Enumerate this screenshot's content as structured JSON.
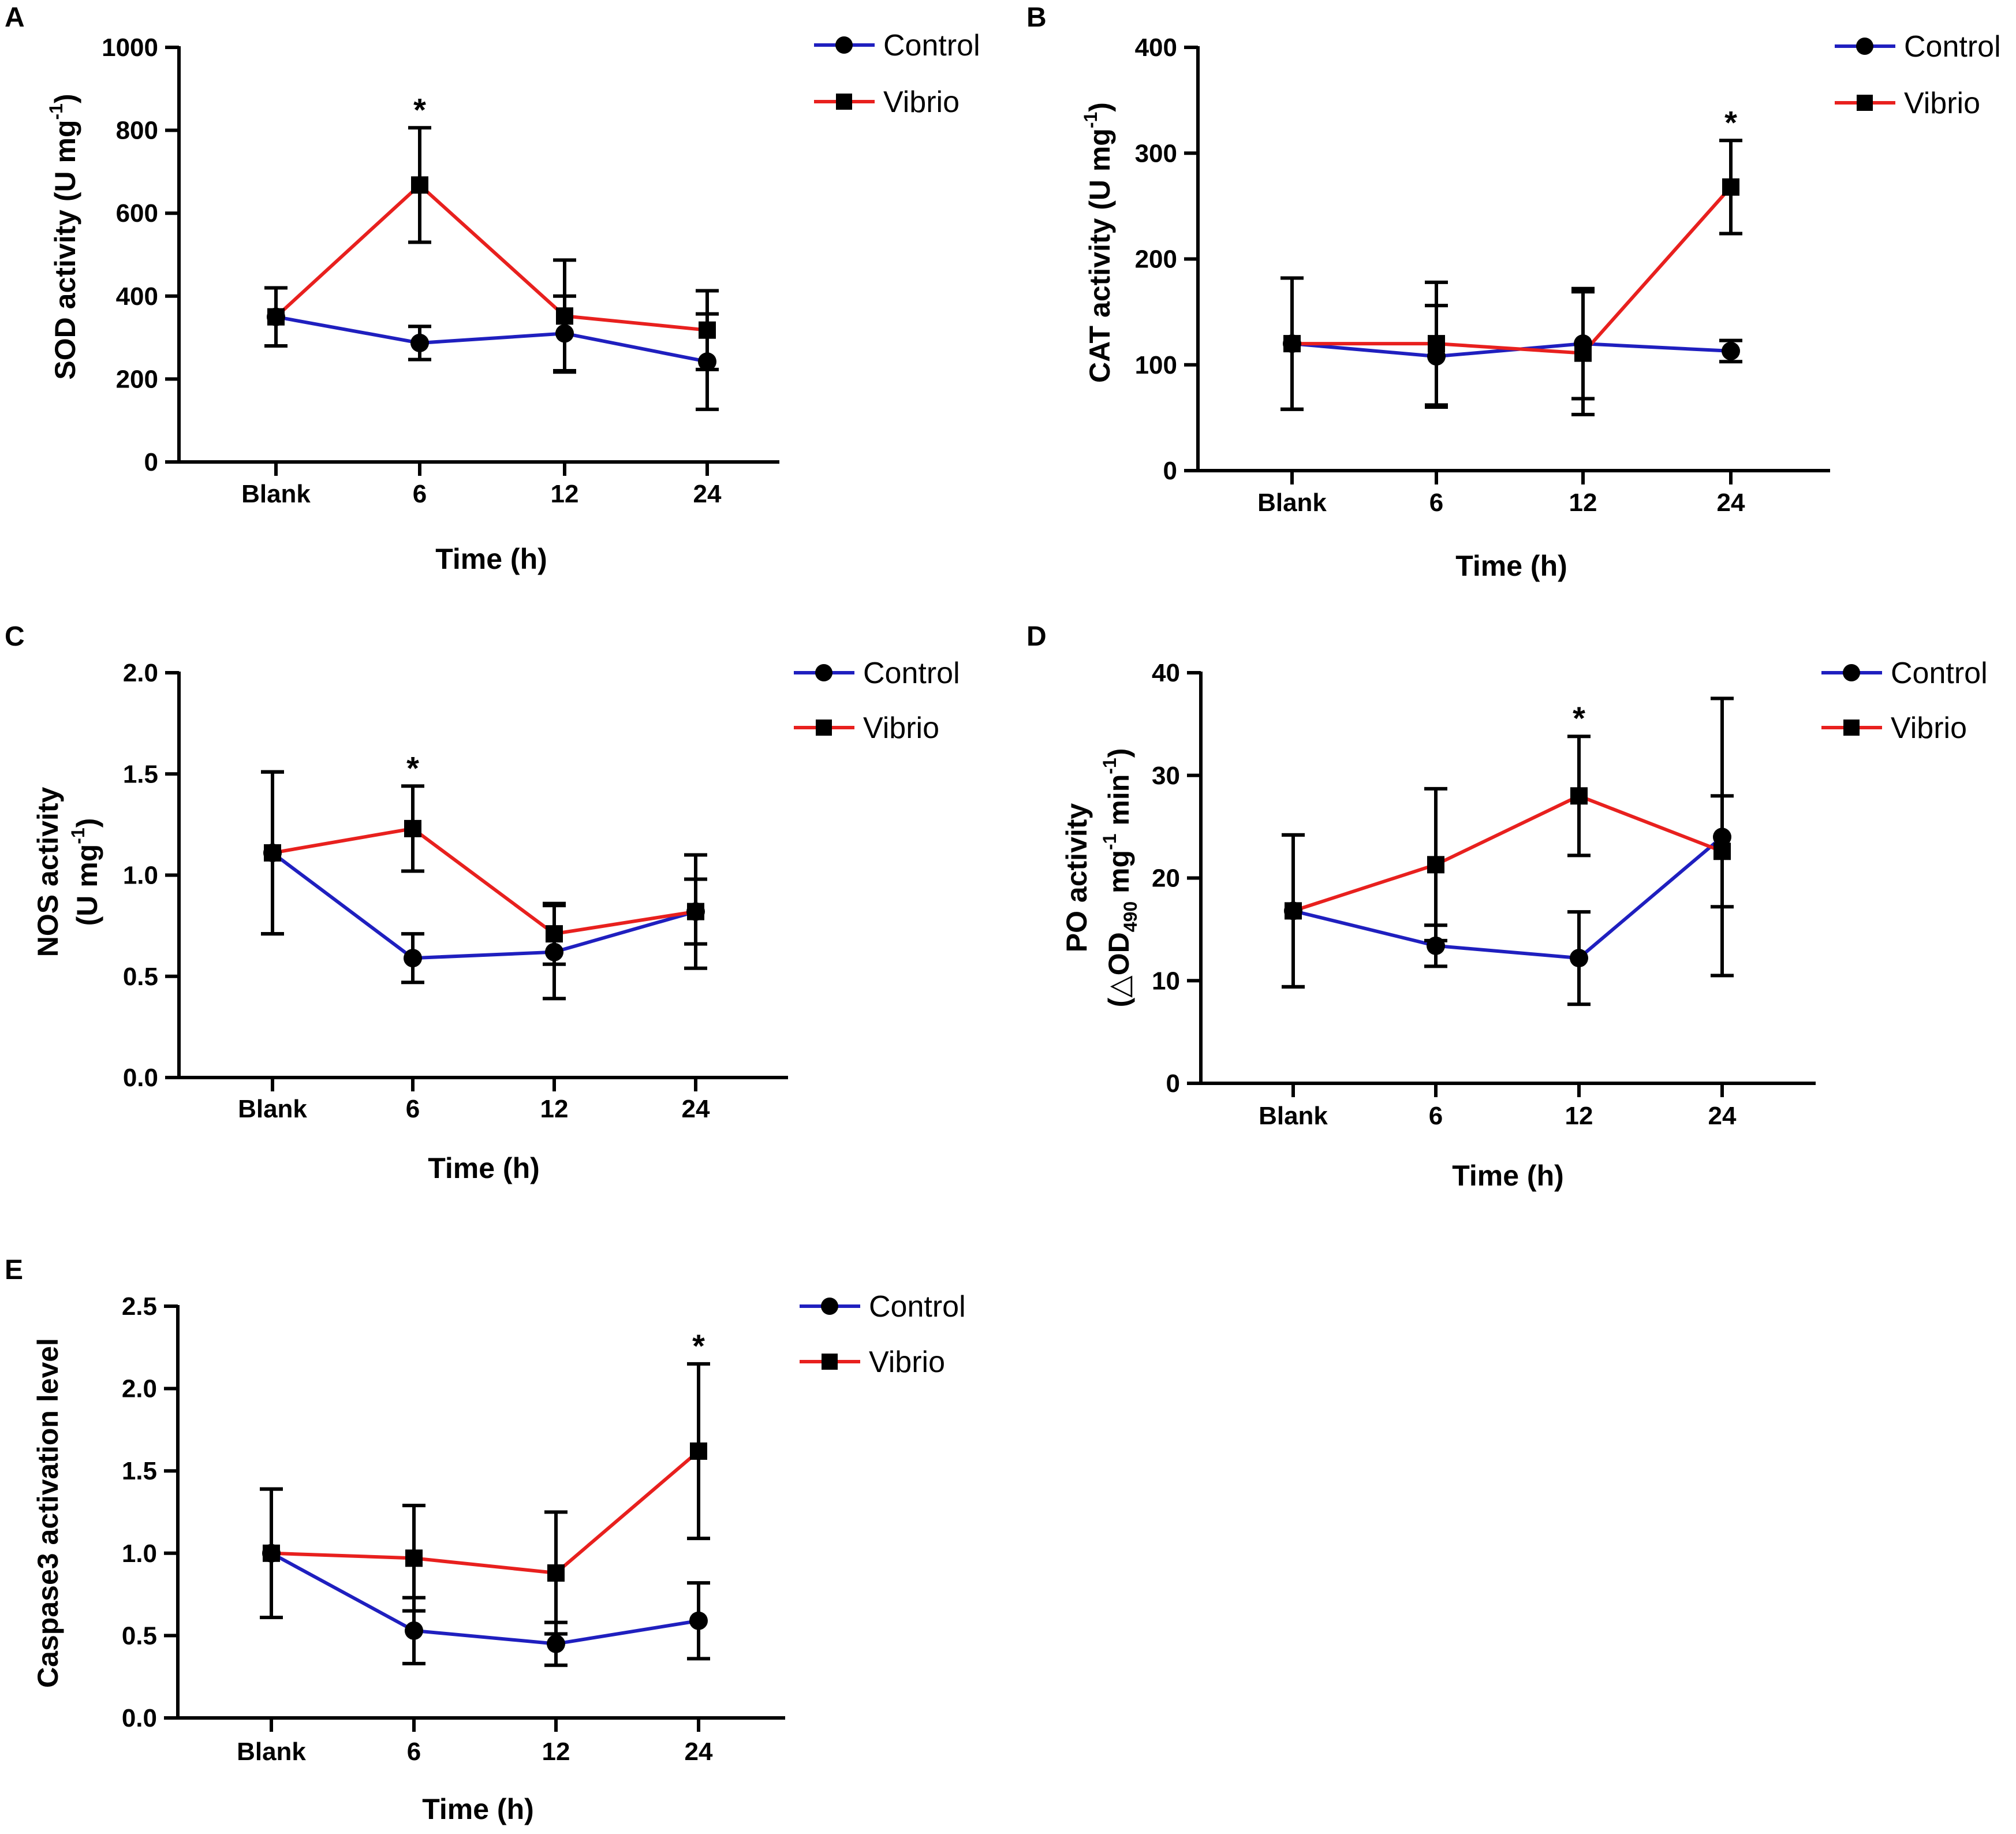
{
  "chart_data": [
    {
      "panel": "A",
      "type": "line",
      "title": "",
      "xlabel": "Time (h)",
      "ylabel": "SOD activity (U mg",
      "ylabel_sup": "-1",
      "ylabel_tail": ")",
      "categories": [
        "Blank",
        "6",
        "12",
        "24"
      ],
      "ylim": [
        0,
        1000
      ],
      "yticks": [
        "0",
        "200",
        "400",
        "600",
        "800",
        "1000"
      ],
      "tick_values": [
        0,
        200,
        400,
        600,
        800,
        1000
      ],
      "series": [
        {
          "name": "Control",
          "color": "#1f1fbf",
          "marker": "circle",
          "values": [
            350,
            287,
            310,
            242
          ],
          "err": [
            70,
            40,
            90,
            115
          ]
        },
        {
          "name": "Vibrio",
          "color": "#e8201e",
          "marker": "square",
          "values": [
            350,
            668,
            352,
            318
          ],
          "err": [
            70,
            138,
            135,
            95
          ]
        }
      ],
      "annotations": [
        {
          "category": "6",
          "text": "*"
        }
      ]
    },
    {
      "panel": "B",
      "type": "line",
      "title": "",
      "xlabel": "Time (h)",
      "ylabel": "CAT activity (U mg",
      "ylabel_sup": "-1",
      "ylabel_tail": ")",
      "categories": [
        "Blank",
        "6",
        "12",
        "24"
      ],
      "ylim": [
        0,
        400
      ],
      "yticks": [
        "0",
        "100",
        "200",
        "300",
        "400"
      ],
      "tick_values": [
        0,
        100,
        200,
        300,
        400
      ],
      "series": [
        {
          "name": "Control",
          "color": "#1f1fbf",
          "marker": "circle",
          "values": [
            120,
            108,
            120,
            113
          ],
          "err": [
            62,
            48,
            52,
            10
          ]
        },
        {
          "name": "Vibrio",
          "color": "#e8201e",
          "marker": "square",
          "values": [
            120,
            120,
            111,
            268
          ],
          "err": [
            62,
            58,
            58,
            44
          ]
        }
      ],
      "annotations": [
        {
          "category": "24",
          "text": "*"
        }
      ]
    },
    {
      "panel": "C",
      "type": "line",
      "title": "",
      "xlabel": "Time (h)",
      "ylabel": "NOS activity",
      "ylabel2": "(U mg",
      "ylabel2_sup": "-1",
      "ylabel2_tail": ")",
      "categories": [
        "Blank",
        "6",
        "12",
        "24"
      ],
      "ylim": [
        0,
        2.0
      ],
      "yticks": [
        "0.0",
        "0.5",
        "1.0",
        "1.5",
        "2.0"
      ],
      "tick_values": [
        0,
        0.5,
        1.0,
        1.5,
        2.0
      ],
      "series": [
        {
          "name": "Control",
          "color": "#1f1fbf",
          "marker": "circle",
          "values": [
            1.11,
            0.59,
            0.62,
            0.82
          ],
          "err": [
            0.4,
            0.12,
            0.23,
            0.16
          ]
        },
        {
          "name": "Vibrio",
          "color": "#e8201e",
          "marker": "square",
          "values": [
            1.11,
            1.23,
            0.71,
            0.82
          ],
          "err": [
            0.4,
            0.21,
            0.15,
            0.28
          ]
        }
      ],
      "annotations": [
        {
          "category": "6",
          "text": "*"
        }
      ]
    },
    {
      "panel": "D",
      "type": "line",
      "title": "",
      "xlabel": "Time (h)",
      "ylabel": "PO activity",
      "ylabel2": "(△OD",
      "ylabel2_sub": "490",
      "ylabel2_mid": " mg",
      "ylabel2_sup": "-1",
      "ylabel2_mid2": " min",
      "ylabel2_sup2": "-1",
      "ylabel2_tail": ")",
      "categories": [
        "Blank",
        "6",
        "12",
        "24"
      ],
      "ylim": [
        0,
        40
      ],
      "yticks": [
        "0",
        "10",
        "20",
        "30",
        "40"
      ],
      "tick_values": [
        0,
        10,
        20,
        30,
        40
      ],
      "series": [
        {
          "name": "Control",
          "color": "#1f1fbf",
          "marker": "circle",
          "values": [
            16.8,
            13.4,
            12.2,
            24.0
          ],
          "err": [
            7.4,
            2.0,
            4.5,
            13.5
          ]
        },
        {
          "name": "Vibrio",
          "color": "#e8201e",
          "marker": "square",
          "values": [
            16.8,
            21.3,
            28.0,
            22.6
          ],
          "err": [
            7.4,
            7.4,
            5.8,
            5.4
          ]
        }
      ],
      "annotations": [
        {
          "category": "12",
          "text": "*"
        }
      ]
    },
    {
      "panel": "E",
      "type": "line",
      "title": "",
      "xlabel": "Time (h)",
      "ylabel": "Caspase3 activation level",
      "categories": [
        "Blank",
        "6",
        "12",
        "24"
      ],
      "ylim": [
        0,
        2.5
      ],
      "yticks": [
        "0.0",
        "0.5",
        "1.0",
        "1.5",
        "2.0",
        "2.5"
      ],
      "tick_values": [
        0,
        0.5,
        1.0,
        1.5,
        2.0,
        2.5
      ],
      "series": [
        {
          "name": "Control",
          "color": "#1f1fbf",
          "marker": "circle",
          "values": [
            1.0,
            0.53,
            0.45,
            0.59
          ],
          "err": [
            0.39,
            0.2,
            0.13,
            0.23
          ]
        },
        {
          "name": "Vibrio",
          "color": "#e8201e",
          "marker": "square",
          "values": [
            1.0,
            0.97,
            0.88,
            1.62
          ],
          "err": [
            0.39,
            0.32,
            0.37,
            0.53
          ]
        }
      ],
      "annotations": [
        {
          "category": "24",
          "text": "*"
        }
      ]
    }
  ]
}
